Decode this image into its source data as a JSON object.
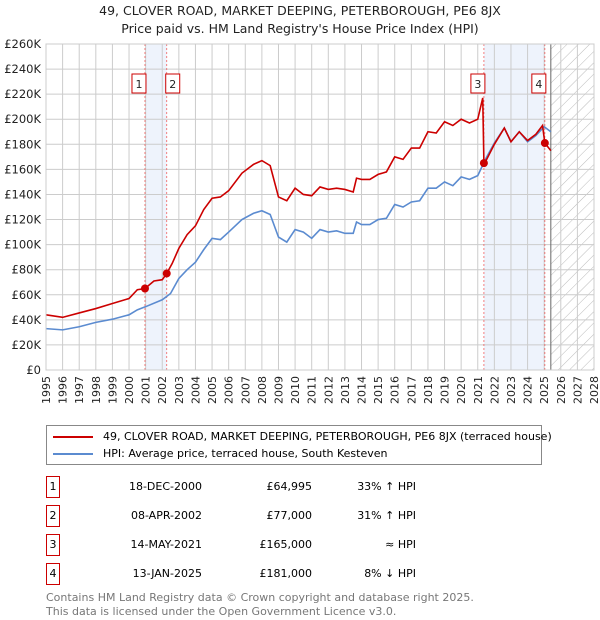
{
  "chart_data": {
    "type": "line",
    "title": "49, CLOVER ROAD, MARKET DEEPING, PETERBOROUGH, PE6 8JX",
    "subtitle": "Price paid vs. HM Land Registry's House Price Index (HPI)",
    "xlim": [
      1995,
      2028
    ],
    "ylim": [
      0,
      260000
    ],
    "x_ticks": [
      "1995",
      "1996",
      "1997",
      "1998",
      "1999",
      "2000",
      "2001",
      "2002",
      "2003",
      "2004",
      "2005",
      "2006",
      "2007",
      "2008",
      "2009",
      "2010",
      "2011",
      "2012",
      "2013",
      "2014",
      "2015",
      "2016",
      "2017",
      "2018",
      "2019",
      "2020",
      "2021",
      "2022",
      "2023",
      "2024",
      "2025",
      "2026",
      "2027",
      "2028"
    ],
    "y_ticks": [
      "£0",
      "£20K",
      "£40K",
      "£60K",
      "£80K",
      "£100K",
      "£120K",
      "£140K",
      "£160K",
      "£180K",
      "£200K",
      "£220K",
      "£240K",
      "£260K"
    ],
    "grid": true,
    "series": [
      {
        "name": "49, CLOVER ROAD, MARKET DEEPING, PETERBOROUGH, PE6 8JX (terraced house)",
        "color": "#cc0000",
        "x": [
          1995,
          1996,
          1997,
          1998,
          1999,
          2000,
          2000.5,
          2000.96,
          2001.5,
          2002,
          2002.27,
          2002.6,
          2003,
          2003.5,
          2004,
          2004.5,
          2005,
          2005.5,
          2006,
          2006.8,
          2007.5,
          2008,
          2008.5,
          2009,
          2009.5,
          2010,
          2010.5,
          2011,
          2011.5,
          2012,
          2012.5,
          2013,
          2013.5,
          2013.7,
          2014,
          2014.5,
          2015,
          2015.5,
          2016,
          2016.5,
          2017,
          2017.5,
          2018,
          2018.5,
          2019,
          2019.5,
          2020,
          2020.5,
          2021,
          2021.3,
          2021.37,
          2021.5,
          2022,
          2022.6,
          2023,
          2023.5,
          2024,
          2024.5,
          2024.9,
          2025.04,
          2025.4
        ],
        "y": [
          44000,
          42000,
          45500,
          49000,
          53000,
          57000,
          64000,
          64995,
          71000,
          72000,
          77000,
          85000,
          97000,
          108000,
          115000,
          128000,
          137000,
          138000,
          143000,
          157000,
          164000,
          167000,
          163000,
          138000,
          135000,
          145000,
          140000,
          139000,
          146000,
          144000,
          145000,
          144000,
          142000,
          153000,
          152000,
          152000,
          156000,
          158000,
          170000,
          168000,
          177000,
          177000,
          190000,
          189000,
          198000,
          195000,
          200000,
          197000,
          200000,
          217000,
          165000,
          167000,
          180000,
          193000,
          182000,
          190000,
          183000,
          188000,
          195000,
          181000,
          175000
        ]
      },
      {
        "name": "HPI: Average price, terraced house, South Kesteven",
        "color": "#5b8bd0",
        "x": [
          1995,
          1996,
          1997,
          1998,
          1999,
          2000,
          2000.5,
          2001,
          2002,
          2002.5,
          2003,
          2003.5,
          2004,
          2004.5,
          2005,
          2005.5,
          2006,
          2006.8,
          2007.5,
          2008,
          2008.5,
          2009,
          2009.5,
          2010,
          2010.5,
          2011,
          2011.5,
          2012,
          2012.5,
          2013,
          2013.5,
          2013.7,
          2014,
          2014.5,
          2015,
          2015.5,
          2016,
          2016.5,
          2017,
          2017.5,
          2018,
          2018.5,
          2019,
          2019.5,
          2020,
          2020.5,
          2021,
          2021.5,
          2022,
          2022.6,
          2023,
          2023.5,
          2024,
          2024.5,
          2025,
          2025.4
        ],
        "y": [
          33000,
          32000,
          34500,
          38000,
          40500,
          44000,
          48000,
          50500,
          56000,
          61000,
          73000,
          80000,
          86000,
          96000,
          105000,
          104000,
          110000,
          120000,
          125000,
          127000,
          124000,
          106000,
          102000,
          112000,
          110000,
          105000,
          112000,
          110000,
          111000,
          109000,
          109000,
          118000,
          116000,
          116000,
          120000,
          121000,
          132000,
          130000,
          134000,
          135000,
          145000,
          145000,
          150000,
          147000,
          154000,
          152000,
          155000,
          169000,
          181000,
          193000,
          182000,
          190000,
          182000,
          187000,
          194000,
          190000
        ]
      }
    ],
    "sales": [
      {
        "label": "1",
        "x": 2000.96,
        "y": 64995
      },
      {
        "label": "2",
        "x": 2002.27,
        "y": 77000
      },
      {
        "label": "3",
        "x": 2021.37,
        "y": 165000
      },
      {
        "label": "4",
        "x": 2025.04,
        "y": 181000
      }
    ],
    "forecast_from": 2025.4
  },
  "table": [
    {
      "num": "1",
      "date": "18-DEC-2000",
      "price": "£64,995",
      "hpi": "33% ↑ HPI"
    },
    {
      "num": "2",
      "date": "08-APR-2002",
      "price": "£77,000",
      "hpi": "31% ↑ HPI"
    },
    {
      "num": "3",
      "date": "14-MAY-2021",
      "price": "£165,000",
      "hpi": "≈ HPI"
    },
    {
      "num": "4",
      "date": "13-JAN-2025",
      "price": "£181,000",
      "hpi": "8% ↓ HPI"
    }
  ],
  "footer": {
    "line1": "Contains HM Land Registry data © Crown copyright and database right 2025.",
    "line2": "This data is licensed under the Open Government Licence v3.0."
  }
}
